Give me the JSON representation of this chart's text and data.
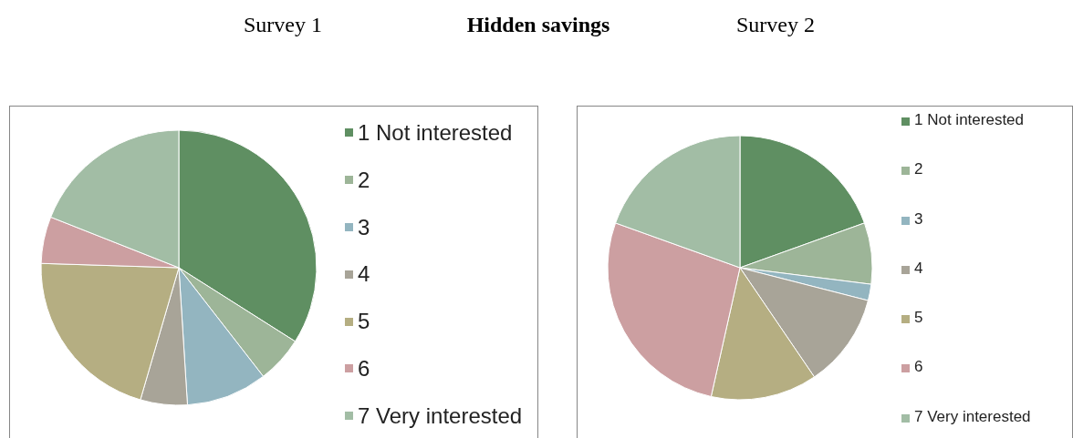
{
  "chart_data": [
    {
      "type": "pie",
      "title": "Survey 1",
      "annotations": [
        "Hidden savings"
      ],
      "legend": "right",
      "categories": [
        "1 Not interested",
        "2",
        "3",
        "4",
        "5",
        "6",
        "7 Very interested"
      ],
      "values": [
        34,
        5.5,
        9.5,
        5.5,
        21,
        5.5,
        19
      ],
      "colors": [
        "#5f8f62",
        "#9db598",
        "#93b5c0",
        "#a8a498",
        "#b5ae82",
        "#cc9fa1",
        "#a2bda5"
      ]
    },
    {
      "type": "pie",
      "title": "Survey 2",
      "legend": "right",
      "categories": [
        "1 Not interested",
        "2",
        "3",
        "4",
        "5",
        "6",
        "7 Very interested"
      ],
      "values": [
        19.5,
        7.5,
        2,
        11.5,
        13,
        27,
        19.5
      ],
      "colors": [
        "#5f8f62",
        "#9db598",
        "#93b5c0",
        "#a8a498",
        "#b5ae82",
        "#cc9fa1",
        "#a2bda5"
      ]
    }
  ]
}
